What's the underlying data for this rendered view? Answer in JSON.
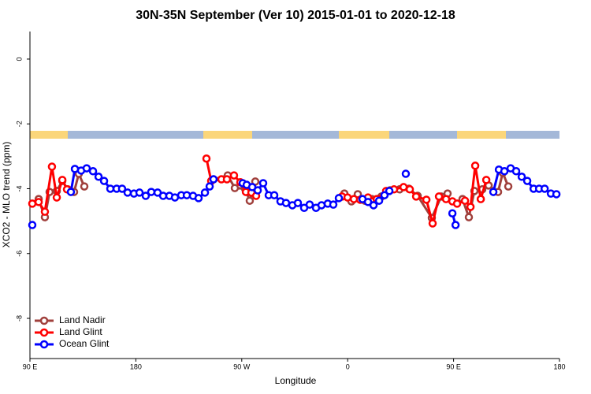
{
  "chart_data": {
    "type": "line",
    "title": "30N-35N September (Ver 10)   2015-01-01 to 2020-12-18",
    "x_label": "Longitude",
    "y_label": "XCO2 - MLO trend (ppm)",
    "xlim": [
      90,
      540
    ],
    "ylim": [
      -9.24,
      0.85
    ],
    "xticks": [
      {
        "value": 90,
        "label": "90 E"
      },
      180,
      {
        "value": 270,
        "label": "90 W"
      },
      {
        "value": 360,
        "label": "0"
      },
      {
        "value": 450,
        "label": "90 E"
      },
      {
        "value": 540,
        "label": "180"
      }
    ],
    "yticks": [
      0,
      -2,
      -4,
      -6,
      -8
    ],
    "legend": "bottom-left",
    "series": [
      {
        "name": "Land Nadir",
        "color": "#a0403c",
        "x": [
          97.4,
          102.7,
          106.7,
          112.8,
          117.5,
          122.2,
          127.5,
          131.5,
          136.2,
          null,
          246,
          258.1,
          264.1,
          272.8,
          276.8,
          281.5,
          null,
          357.2,
          363.2,
          368.6,
          374.6,
          380.6,
          388.7,
          396,
          404.1,
          412.1,
          419.5,
          431.5,
          439.5,
          444.9,
          null,
          457.6,
          463,
          467.7,
          474.4,
          479.8,
          487.8,
          491.8,
          496.5
        ],
        "values": [
          -4.32,
          -4.88,
          -4.1,
          -4.07,
          -3.76,
          -4.02,
          -4.1,
          -3.54,
          -3.93,
          null,
          -3.71,
          -3.59,
          -3.98,
          -4.0,
          -4.37,
          -3.78,
          null,
          -4.15,
          -4.39,
          -4.17,
          -4.37,
          -4.32,
          -4.24,
          -4.05,
          -4.02,
          -4.0,
          -4.22,
          -4.9,
          -4.24,
          -4.15,
          null,
          -4.32,
          -4.88,
          -4.07,
          -4.02,
          -3.9,
          -4.1,
          -3.51,
          -3.93
        ]
      },
      {
        "name": "Land Glint",
        "color": "#ff0000",
        "x": [
          92,
          97.4,
          102.7,
          108.7,
          112.8,
          117.5,
          121.5,
          null,
          240,
          244,
          252.7,
          257.4,
          263.4,
          268.8,
          273.5,
          278.2,
          282.2,
          null,
          355.2,
          359.9,
          365.3,
          370.6,
          377.3,
          384.7,
          392.7,
          399.4,
          407.5,
          412.8,
          418.2,
          426.9,
          432.2,
          437.6,
          443.6,
          449,
          453,
          459.7,
          464.4,
          468.4,
          473.1,
          477.8
        ],
        "values": [
          -4.46,
          -4.41,
          -4.71,
          -3.32,
          -4.27,
          -3.73,
          -4.02,
          null,
          -3.07,
          -3.76,
          -3.71,
          -3.71,
          -3.59,
          -3.8,
          -4.1,
          -4.12,
          -4.22,
          null,
          -4.24,
          -4.27,
          -4.32,
          -4.34,
          -4.27,
          -4.32,
          -4.07,
          -4.02,
          -3.95,
          -4.02,
          -4.24,
          -4.34,
          -5.07,
          -4.24,
          -4.32,
          -4.39,
          -4.46,
          -4.37,
          -4.56,
          -3.29,
          -4.32,
          -3.73
        ]
      },
      {
        "name": "Ocean Glint",
        "color": "#0000ff",
        "x": [
          92,
          null,
          124.8,
          128.2,
          133.5,
          138.2,
          143.6,
          148.3,
          153,
          158.3,
          163.7,
          168.3,
          173,
          178.4,
          183.1,
          188.4,
          193.1,
          198.5,
          203.2,
          208.5,
          213.2,
          218.6,
          223.3,
          228.6,
          233.3,
          238.7,
          242.7,
          246,
          null,
          270.8,
          274.2,
          278.9,
          283.6,
          288.2,
          292.9,
          297.6,
          302.9,
          307.6,
          313,
          317.7,
          323,
          327.7,
          333.1,
          337.8,
          343.1,
          347.8,
          352.5,
          null,
          372.6,
          377.3,
          382,
          386.7,
          391.3,
          395.4,
          null,
          409.4,
          null,
          449,
          451.7,
          null,
          483.8,
          488.5,
          493.2,
          498.5,
          503.2,
          507.9,
          512.6,
          518,
          522.7,
          527.4,
          532.7,
          537.4
        ],
        "values": [
          -5.12,
          null,
          -4.1,
          -3.39,
          -3.44,
          -3.37,
          -3.46,
          -3.63,
          -3.76,
          -4.0,
          -4.0,
          -4.0,
          -4.12,
          -4.15,
          -4.12,
          -4.22,
          -4.1,
          -4.12,
          -4.22,
          -4.22,
          -4.27,
          -4.2,
          -4.2,
          -4.22,
          -4.29,
          -4.12,
          -3.93,
          -3.71,
          null,
          -3.83,
          -3.88,
          -3.95,
          -4.05,
          -3.83,
          -4.2,
          -4.2,
          -4.39,
          -4.44,
          -4.51,
          -4.44,
          -4.59,
          -4.49,
          -4.59,
          -4.51,
          -4.46,
          -4.49,
          -4.29,
          null,
          -4.32,
          -4.41,
          -4.51,
          -4.37,
          -4.2,
          -4.07,
          null,
          -3.54,
          null,
          -4.76,
          -5.12,
          null,
          -4.1,
          -3.41,
          -3.46,
          -3.37,
          -3.46,
          -3.63,
          -3.76,
          -4.0,
          -4.0,
          -4.0,
          -4.15,
          -4.17
        ]
      }
    ]
  }
}
